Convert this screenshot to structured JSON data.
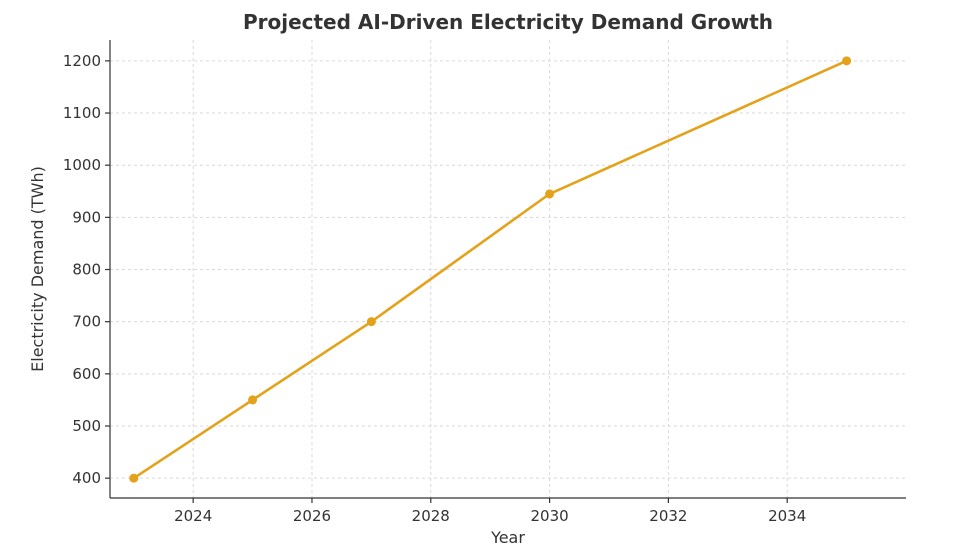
{
  "chart_data": {
    "type": "line",
    "title": "Projected AI-Driven Electricity Demand Growth",
    "xlabel": "Year",
    "ylabel": "Electricity Demand (TWh)",
    "xlim": [
      2022.6,
      2036.0
    ],
    "ylim": [
      362,
      1240
    ],
    "xticks": [
      2024,
      2026,
      2028,
      2030,
      2032,
      2034
    ],
    "yticks": [
      400,
      500,
      600,
      700,
      800,
      900,
      1000,
      1100,
      1200
    ],
    "grid": true,
    "series": [
      {
        "color": "#e3a21a",
        "x": [
          2023,
          2025,
          2027,
          2030,
          2035
        ],
        "y": [
          400,
          550,
          700,
          945,
          1200
        ]
      }
    ]
  }
}
